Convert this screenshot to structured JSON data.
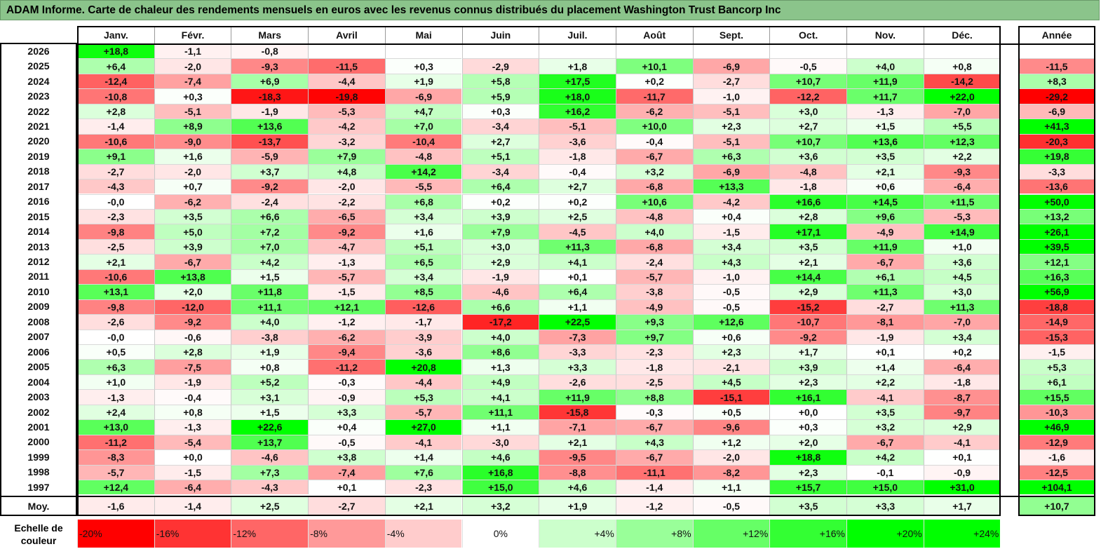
{
  "title": "ADAM Informe. Carte de chaleur des rendements mensuels en euros avec les revenus connus distribués du placement Washington Trust Bancorp Inc",
  "scale_label": "Echelle de couleur",
  "chart_data": {
    "type": "heatmap",
    "title": "ADAM Informe. Carte de chaleur des rendements mensuels en euros avec les revenus connus distribués du placement Washington Trust Bancorp Inc",
    "columns": [
      "Janv.",
      "Févr.",
      "Mars",
      "Avril",
      "Mai",
      "Juin",
      "Juil.",
      "Août",
      "Sept.",
      "Oct.",
      "Nov.",
      "Déc."
    ],
    "year_column": "Année",
    "rows": [
      {
        "label": "2026",
        "values": [
          "+18,8",
          "-1,1",
          "-0,8",
          "",
          "",
          "",
          "",
          "",
          "",
          "",
          "",
          ""
        ],
        "year": ""
      },
      {
        "label": "2025",
        "values": [
          "+6,4",
          "-2,0",
          "-9,3",
          "-11,5",
          "+0,3",
          "-2,9",
          "+1,8",
          "+10,1",
          "-6,9",
          "-0,5",
          "+4,0",
          "+0,8"
        ],
        "year": "-11,5"
      },
      {
        "label": "2024",
        "values": [
          "-12,4",
          "-7,4",
          "+6,9",
          "-4,4",
          "+1,9",
          "+5,8",
          "+17,5",
          "+0,2",
          "-2,7",
          "+10,7",
          "+11,9",
          "-14,2"
        ],
        "year": "+8,3"
      },
      {
        "label": "2023",
        "values": [
          "-10,8",
          "+0,3",
          "-18,3",
          "-19,8",
          "-6,9",
          "+5,9",
          "+18,0",
          "-11,7",
          "-1,0",
          "-12,2",
          "+11,7",
          "+22,0"
        ],
        "year": "-29,2"
      },
      {
        "label": "2022",
        "values": [
          "+2,8",
          "-5,1",
          "-1,9",
          "-5,3",
          "+4,7",
          "+0,3",
          "+16,2",
          "-6,2",
          "-5,1",
          "+3,0",
          "-1,3",
          "-7,0"
        ],
        "year": "-6,9"
      },
      {
        "label": "2021",
        "values": [
          "-1,4",
          "+8,9",
          "+13,6",
          "-4,2",
          "+7,0",
          "-3,4",
          "-5,1",
          "+10,0",
          "+2,3",
          "+2,7",
          "+1,5",
          "+5,5"
        ],
        "year": "+41,3"
      },
      {
        "label": "2020",
        "values": [
          "-10,6",
          "-9,0",
          "-13,7",
          "-3,2",
          "-10,4",
          "+2,7",
          "-3,6",
          "-0,4",
          "-5,1",
          "+10,7",
          "+13,6",
          "+12,3"
        ],
        "year": "-20,3"
      },
      {
        "label": "2019",
        "values": [
          "+9,1",
          "+1,6",
          "-5,9",
          "+7,9",
          "-4,8",
          "+5,1",
          "-1,8",
          "-6,7",
          "+6,3",
          "+3,6",
          "+3,5",
          "+2,2"
        ],
        "year": "+19,8"
      },
      {
        "label": "2018",
        "values": [
          "-2,7",
          "-2,0",
          "+3,7",
          "+4,8",
          "+14,2",
          "-3,4",
          "-0,4",
          "+3,2",
          "-6,9",
          "-4,8",
          "+2,1",
          "-9,3"
        ],
        "year": "-3,3"
      },
      {
        "label": "2017",
        "values": [
          "-4,3",
          "+0,7",
          "-9,2",
          "-2,0",
          "-5,5",
          "+6,4",
          "+2,7",
          "-6,8",
          "+13,3",
          "-1,8",
          "+0,6",
          "-6,4"
        ],
        "year": "-13,6"
      },
      {
        "label": "2016",
        "values": [
          "-0,0",
          "-6,2",
          "-2,4",
          "-2,2",
          "+6,8",
          "+0,2",
          "+0,2",
          "+10,6",
          "-4,2",
          "+16,6",
          "+14,5",
          "+11,5"
        ],
        "year": "+50,0"
      },
      {
        "label": "2015",
        "values": [
          "-2,3",
          "+3,5",
          "+6,6",
          "-6,5",
          "+3,4",
          "+3,9",
          "+2,5",
          "-4,8",
          "+0,4",
          "+2,8",
          "+9,6",
          "-5,3"
        ],
        "year": "+13,2"
      },
      {
        "label": "2014",
        "values": [
          "-9,8",
          "+5,0",
          "+7,2",
          "-9,2",
          "+1,6",
          "+7,9",
          "-4,5",
          "+4,0",
          "-1,5",
          "+17,1",
          "-4,9",
          "+14,9"
        ],
        "year": "+26,1"
      },
      {
        "label": "2013",
        "values": [
          "-2,5",
          "+3,9",
          "+7,0",
          "-4,7",
          "+5,1",
          "+3,0",
          "+11,3",
          "-6,8",
          "+3,4",
          "+3,5",
          "+11,9",
          "+1,0"
        ],
        "year": "+39,5"
      },
      {
        "label": "2012",
        "values": [
          "+2,1",
          "-6,7",
          "+4,2",
          "-1,3",
          "+6,5",
          "+2,9",
          "+4,1",
          "-2,4",
          "+4,3",
          "+2,1",
          "-6,7",
          "+3,6"
        ],
        "year": "+12,1"
      },
      {
        "label": "2011",
        "values": [
          "-10,6",
          "+13,8",
          "+1,5",
          "-5,7",
          "+3,4",
          "-1,9",
          "+0,1",
          "-5,7",
          "-1,0",
          "+14,4",
          "+6,1",
          "+4,5"
        ],
        "year": "+16,3"
      },
      {
        "label": "2010",
        "values": [
          "+13,1",
          "+2,0",
          "+11,8",
          "-1,5",
          "+8,5",
          "-4,6",
          "+6,4",
          "-3,8",
          "-0,5",
          "+2,9",
          "+11,3",
          "+3,0"
        ],
        "year": "+56,9"
      },
      {
        "label": "2009",
        "values": [
          "-9,8",
          "-12,0",
          "+11,1",
          "+12,1",
          "-12,6",
          "+6,6",
          "+1,1",
          "-4,9",
          "-0,5",
          "-15,2",
          "-2,7",
          "+11,3"
        ],
        "year": "-18,8"
      },
      {
        "label": "2008",
        "values": [
          "-2,6",
          "-9,2",
          "+4,0",
          "-1,2",
          "-1,7",
          "-17,2",
          "+22,5",
          "+9,3",
          "+12,6",
          "-10,7",
          "-8,1",
          "-7,0"
        ],
        "year": "-14,9"
      },
      {
        "label": "2007",
        "values": [
          "-0,0",
          "-0,6",
          "-3,8",
          "-6,2",
          "-3,9",
          "+4,0",
          "-7,3",
          "+9,7",
          "+0,6",
          "-9,2",
          "-1,9",
          "+3,4"
        ],
        "year": "-15,3"
      },
      {
        "label": "2006",
        "values": [
          "+0,5",
          "+2,8",
          "+1,9",
          "-9,4",
          "-3,6",
          "+8,6",
          "-3,3",
          "-2,3",
          "+2,3",
          "+1,7",
          "+0,1",
          "+0,2"
        ],
        "year": "-1,5"
      },
      {
        "label": "2005",
        "values": [
          "+6,3",
          "-7,5",
          "+0,8",
          "-11,2",
          "+20,8",
          "+1,3",
          "+3,3",
          "-1,8",
          "-2,1",
          "+3,9",
          "+1,4",
          "-6,4"
        ],
        "year": "+5,3"
      },
      {
        "label": "2004",
        "values": [
          "+1,0",
          "-1,9",
          "+5,2",
          "-0,3",
          "-4,4",
          "+4,9",
          "-2,6",
          "-2,5",
          "+4,5",
          "+2,3",
          "+2,2",
          "-1,8"
        ],
        "year": "+6,1"
      },
      {
        "label": "2003",
        "values": [
          "-1,3",
          "-0,4",
          "+3,1",
          "-0,9",
          "+5,3",
          "+4,1",
          "+11,9",
          "+8,8",
          "-15,1",
          "+16,1",
          "-4,1",
          "-8,7"
        ],
        "year": "+15,5"
      },
      {
        "label": "2002",
        "values": [
          "+2,4",
          "+0,8",
          "+1,5",
          "+3,3",
          "-5,7",
          "+11,1",
          "-15,8",
          "-0,3",
          "+0,5",
          "+0,0",
          "+3,5",
          "-9,7"
        ],
        "year": "-10,3"
      },
      {
        "label": "2001",
        "values": [
          "+13,0",
          "-1,3",
          "+22,6",
          "+0,4",
          "+27,0",
          "+1,1",
          "-7,1",
          "-6,7",
          "-9,6",
          "+0,3",
          "+3,2",
          "+2,9"
        ],
        "year": "+46,9"
      },
      {
        "label": "2000",
        "values": [
          "-11,2",
          "-5,4",
          "+13,7",
          "-0,5",
          "-4,1",
          "-3,0",
          "+2,1",
          "+4,3",
          "+1,2",
          "+2,0",
          "-6,7",
          "-4,1"
        ],
        "year": "-12,9"
      },
      {
        "label": "1999",
        "values": [
          "-8,3",
          "+0,0",
          "-4,6",
          "+3,8",
          "+1,4",
          "+4,6",
          "-9,5",
          "-6,7",
          "-2,0",
          "+18,8",
          "+4,2",
          "+0,1"
        ],
        "year": "-1,6"
      },
      {
        "label": "1998",
        "values": [
          "-5,7",
          "-1,5",
          "+7,3",
          "-7,4",
          "+7,6",
          "+16,8",
          "-8,8",
          "-11,1",
          "-8,2",
          "+2,3",
          "-0,1",
          "-0,9"
        ],
        "year": "-12,5"
      },
      {
        "label": "1997",
        "values": [
          "+12,4",
          "-6,4",
          "-4,3",
          "+0,1",
          "-2,3",
          "+15,0",
          "+4,6",
          "-1,4",
          "+1,1",
          "+15,7",
          "+15,0",
          "+31,0"
        ],
        "year": "+104,1"
      }
    ],
    "average_row": {
      "label": "Moy.",
      "values": [
        "-1,6",
        "-1,4",
        "+2,5",
        "-2,7",
        "+2,1",
        "+3,2",
        "+1,9",
        "-1,2",
        "-0,5",
        "+3,5",
        "+3,3",
        "+1,7"
      ],
      "year": "+10,7"
    },
    "color_scale": [
      "-20%",
      "-16%",
      "-12%",
      "-8%",
      "-4%",
      "0%",
      "+4%",
      "+8%",
      "+12%",
      "+16%",
      "+20%",
      "+24%"
    ],
    "colors": {
      "negative_max": "#ff0000",
      "neutral": "#ffffff",
      "positive_max": "#00ff00",
      "title_bar": "#8bc48b"
    }
  }
}
